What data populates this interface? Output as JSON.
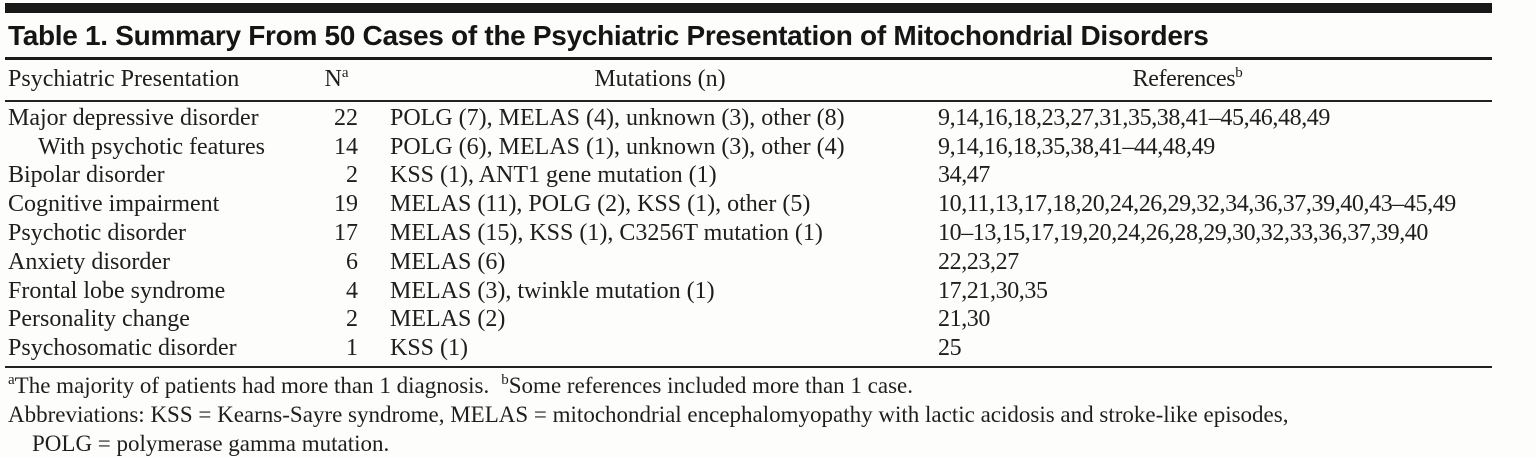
{
  "table": {
    "title": "Table 1. Summary From 50 Cases of the Psychiatric Presentation of Mitochondrial Disorders",
    "columns": {
      "presentation": "Psychiatric Presentation",
      "n": "N",
      "n_sup": "a",
      "mutations": "Mutations (n)",
      "references": "References",
      "references_sup": "b"
    },
    "rows": [
      {
        "presentation": "Major depressive disorder",
        "n": "22",
        "mutations": "POLG (7), MELAS (4), unknown (3), other (8)",
        "references": "9,14,16,18,23,27,31,35,38,41–45,46,48,49"
      },
      {
        "presentation": "With psychotic features",
        "n": "14",
        "mutations": "POLG (6), MELAS (1), unknown (3), other (4)",
        "references": "9,14,16,18,35,38,41–44,48,49"
      },
      {
        "presentation": "Bipolar disorder",
        "n": "2",
        "mutations": "KSS (1), ANT1 gene mutation (1)",
        "references": "34,47"
      },
      {
        "presentation": "Cognitive impairment",
        "n": "19",
        "mutations": "MELAS (11), POLG (2), KSS (1), other (5)",
        "references": "10,11,13,17,18,20,24,26,29,32,34,36,37,39,40,43–45,49"
      },
      {
        "presentation": "Psychotic disorder",
        "n": "17",
        "mutations": "MELAS (15), KSS (1), C3256T mutation (1)",
        "references": "10–13,15,17,19,20,24,26,28,29,30,32,33,36,37,39,40"
      },
      {
        "presentation": "Anxiety disorder",
        "n": "6",
        "mutations": "MELAS (6)",
        "references": "22,23,27"
      },
      {
        "presentation": "Frontal lobe syndrome",
        "n": "4",
        "mutations": "MELAS (3), twinkle mutation (1)",
        "references": "17,21,30,35"
      },
      {
        "presentation": "Personality change",
        "n": "2",
        "mutations": "MELAS (2)",
        "references": "21,30"
      },
      {
        "presentation": "Psychosomatic disorder",
        "n": "1",
        "mutations": "KSS (1)",
        "references": "25"
      }
    ],
    "footnotes": {
      "a_sup": "a",
      "a_text": "The majority of patients had more than 1 diagnosis.",
      "b_sup": "b",
      "b_text": "Some references included more than 1 case.",
      "abbrev_line1": "Abbreviations: KSS = Kearns-Sayre syndrome, MELAS = mitochondrial encephalomyopathy with lactic acidosis and stroke-like episodes,",
      "abbrev_line2": "POLG = polymerase gamma mutation."
    }
  }
}
